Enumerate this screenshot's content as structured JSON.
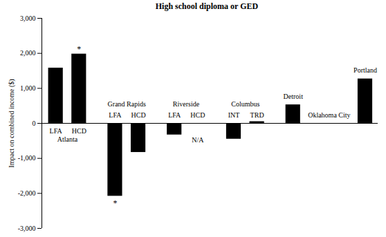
{
  "chart_data": {
    "type": "bar",
    "title": "High school diploma or GED",
    "y_label": "Impact on combined income ($)",
    "categories": [
      "LFA",
      "HCD",
      "LFA",
      "HCD",
      "LFA",
      "HCD",
      "INT",
      "TRD",
      null,
      null,
      null
    ],
    "groups": [
      "Atlanta",
      "Atlanta",
      "Grand Rapids",
      "Grand Rapids",
      "Riverside",
      "Riverside",
      "Columbus",
      "Columbus",
      "Detroit",
      "Oklahoma City",
      "Portland"
    ],
    "values": [
      1580,
      1980,
      -2080,
      -830,
      -330,
      null,
      -450,
      50,
      530,
      0,
      1270
    ],
    "color": "#000000",
    "ylim": [
      -3000,
      3000
    ],
    "yticks": [
      {
        "value": -3000,
        "label": "-3,000"
      },
      {
        "value": -2000,
        "label": "-2,000"
      },
      {
        "value": -1000,
        "label": "-1,000"
      },
      0,
      {
        "value": 1000,
        "label": "1,000"
      },
      {
        "value": 2000,
        "label": "2,000"
      },
      {
        "value": 3000,
        "label": "3,000"
      }
    ],
    "grid": false,
    "annotations": [
      {
        "index": 1,
        "text": "*"
      },
      {
        "index": 2,
        "text": "*"
      },
      {
        "index": 5,
        "text": "N/A"
      }
    ]
  }
}
